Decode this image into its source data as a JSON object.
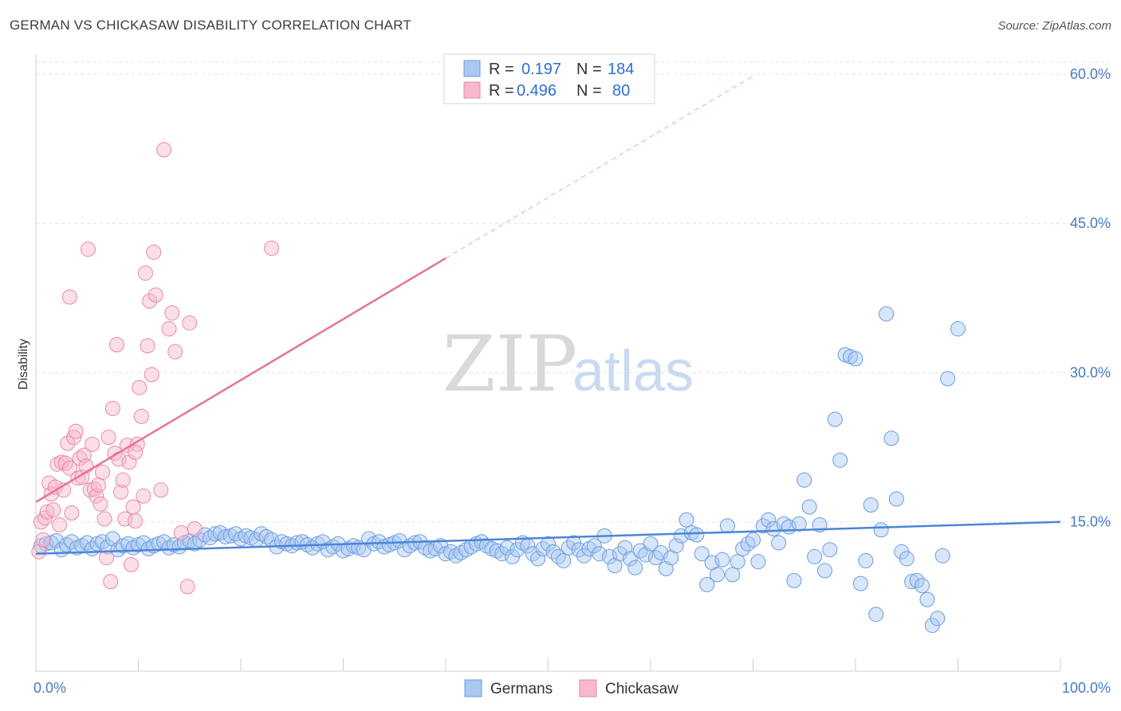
{
  "title": "GERMAN VS CHICKASAW DISABILITY CORRELATION CHART",
  "source": "Source: ZipAtlas.com",
  "watermark": {
    "zip": "ZIP",
    "atlas": "atlas"
  },
  "legend": {
    "r_label": "R =",
    "n_label": "N =",
    "rows": [
      {
        "r": "0.197",
        "n": "184",
        "color": "#a9c8f2"
      },
      {
        "r": "0.496",
        "n": "80",
        "color": "#f7b9cb"
      }
    ]
  },
  "bottom_legend": [
    {
      "label": "Germans",
      "color": "#a9c8f2"
    },
    {
      "label": "Chickasaw",
      "color": "#f7b9cb"
    }
  ],
  "chart_data": {
    "type": "scatter",
    "xlabel": "",
    "ylabel": "Disability",
    "xlim": [
      0,
      100
    ],
    "ylim": [
      0,
      62
    ],
    "x_tick_labels": [
      "0.0%",
      "100.0%"
    ],
    "y_ticks": [
      15,
      30,
      45,
      60
    ],
    "y_tick_labels": [
      "15.0%",
      "30.0%",
      "45.0%",
      "60.0%"
    ],
    "grid": true,
    "legend_position": "top-center",
    "colors": {
      "germans": "#4a86d8",
      "chickasaw": "#e8729a"
    },
    "series": [
      {
        "name": "Germans",
        "trend": {
          "x1": 0,
          "y1": 11.8,
          "x2": 100,
          "y2": 15.0
        },
        "points": [
          [
            0.5,
            12.6
          ],
          [
            1,
            12.8
          ],
          [
            1.5,
            12.9
          ],
          [
            2,
            13.1
          ],
          [
            2.5,
            12.2
          ],
          [
            3,
            12.7
          ],
          [
            3.5,
            13.0
          ],
          [
            4,
            12.4
          ],
          [
            4.5,
            12.6
          ],
          [
            5,
            12.9
          ],
          [
            5.5,
            12.3
          ],
          [
            6,
            12.8
          ],
          [
            6.5,
            13.0
          ],
          [
            7,
            12.5
          ],
          [
            7.5,
            13.3
          ],
          [
            8,
            12.2
          ],
          [
            8.5,
            12.6
          ],
          [
            9,
            12.8
          ],
          [
            9.5,
            12.4
          ],
          [
            10,
            12.7
          ],
          [
            10.5,
            12.9
          ],
          [
            11,
            12.3
          ],
          [
            11.5,
            12.6
          ],
          [
            12,
            12.8
          ],
          [
            12.5,
            13.0
          ],
          [
            13,
            12.4
          ],
          [
            13.5,
            12.7
          ],
          [
            14,
            12.5
          ],
          [
            14.5,
            12.9
          ],
          [
            15,
            13.1
          ],
          [
            15.5,
            12.8
          ],
          [
            16,
            13.2
          ],
          [
            16.5,
            13.7
          ],
          [
            17,
            13.4
          ],
          [
            17.5,
            13.8
          ],
          [
            18,
            13.9
          ],
          [
            18.5,
            13.5
          ],
          [
            19,
            13.6
          ],
          [
            19.5,
            13.8
          ],
          [
            20,
            13.3
          ],
          [
            20.5,
            13.6
          ],
          [
            21,
            13.4
          ],
          [
            21.5,
            13.2
          ],
          [
            22,
            13.8
          ],
          [
            22.5,
            13.5
          ],
          [
            23,
            13.2
          ],
          [
            23.5,
            12.5
          ],
          [
            24,
            13.0
          ],
          [
            24.5,
            12.8
          ],
          [
            25,
            12.6
          ],
          [
            25.5,
            12.9
          ],
          [
            26,
            13.0
          ],
          [
            26.5,
            12.7
          ],
          [
            27,
            12.4
          ],
          [
            27.5,
            12.8
          ],
          [
            28,
            13.0
          ],
          [
            28.5,
            12.2
          ],
          [
            29,
            12.5
          ],
          [
            29.5,
            12.8
          ],
          [
            30,
            12.1
          ],
          [
            30.5,
            12.3
          ],
          [
            31,
            12.6
          ],
          [
            31.5,
            12.4
          ],
          [
            32,
            12.2
          ],
          [
            32.5,
            13.3
          ],
          [
            33,
            12.8
          ],
          [
            33.5,
            13.0
          ],
          [
            34,
            12.5
          ],
          [
            34.5,
            12.7
          ],
          [
            35,
            12.9
          ],
          [
            35.5,
            13.1
          ],
          [
            36,
            12.2
          ],
          [
            36.5,
            12.6
          ],
          [
            37,
            12.9
          ],
          [
            37.5,
            13.0
          ],
          [
            38,
            12.4
          ],
          [
            38.5,
            12.1
          ],
          [
            39,
            12.3
          ],
          [
            39.5,
            12.6
          ],
          [
            40,
            11.8
          ],
          [
            40.5,
            12.0
          ],
          [
            41,
            11.6
          ],
          [
            41.5,
            11.9
          ],
          [
            42,
            12.2
          ],
          [
            42.5,
            12.5
          ],
          [
            43,
            12.8
          ],
          [
            43.5,
            13.0
          ],
          [
            44,
            12.6
          ],
          [
            44.5,
            12.3
          ],
          [
            45,
            12.1
          ],
          [
            45.5,
            11.8
          ],
          [
            46,
            12.4
          ],
          [
            46.5,
            11.5
          ],
          [
            47,
            12.2
          ],
          [
            47.5,
            12.9
          ],
          [
            48,
            12.6
          ],
          [
            48.5,
            11.8
          ],
          [
            49,
            11.3
          ],
          [
            49.5,
            12.3
          ],
          [
            50,
            12.8
          ],
          [
            50.5,
            12.0
          ],
          [
            51,
            11.5
          ],
          [
            51.5,
            11.1
          ],
          [
            52,
            12.4
          ],
          [
            52.5,
            12.9
          ],
          [
            53,
            12.2
          ],
          [
            53.5,
            11.6
          ],
          [
            54,
            12.3
          ],
          [
            54.5,
            12.6
          ],
          [
            55,
            11.8
          ],
          [
            55.5,
            13.6
          ],
          [
            56,
            11.5
          ],
          [
            56.5,
            10.6
          ],
          [
            57,
            11.8
          ],
          [
            57.5,
            12.4
          ],
          [
            58,
            11.3
          ],
          [
            58.5,
            10.4
          ],
          [
            59,
            12.1
          ],
          [
            59.5,
            11.7
          ],
          [
            60,
            12.8
          ],
          [
            60.5,
            11.4
          ],
          [
            61,
            11.9
          ],
          [
            61.5,
            10.3
          ],
          [
            62,
            11.4
          ],
          [
            62.5,
            12.6
          ],
          [
            63,
            13.6
          ],
          [
            63.5,
            15.2
          ],
          [
            64,
            13.9
          ],
          [
            64.5,
            13.7
          ],
          [
            65,
            11.8
          ],
          [
            65.5,
            8.7
          ],
          [
            66,
            10.9
          ],
          [
            66.5,
            9.7
          ],
          [
            67,
            11.2
          ],
          [
            67.5,
            14.6
          ],
          [
            68,
            9.7
          ],
          [
            68.5,
            11.0
          ],
          [
            69,
            12.3
          ],
          [
            69.5,
            12.8
          ],
          [
            70,
            13.2
          ],
          [
            70.5,
            11.0
          ],
          [
            71,
            14.6
          ],
          [
            71.5,
            15.2
          ],
          [
            72,
            14.3
          ],
          [
            72.5,
            12.9
          ],
          [
            73,
            14.8
          ],
          [
            73.5,
            14.5
          ],
          [
            74,
            9.1
          ],
          [
            74.5,
            14.8
          ],
          [
            75,
            19.2
          ],
          [
            75.5,
            16.5
          ],
          [
            76,
            11.5
          ],
          [
            76.5,
            14.7
          ],
          [
            77,
            10.1
          ],
          [
            77.5,
            12.2
          ],
          [
            78,
            25.3
          ],
          [
            78.5,
            21.2
          ],
          [
            79,
            31.8
          ],
          [
            79.5,
            31.6
          ],
          [
            80,
            31.4
          ],
          [
            80.5,
            8.8
          ],
          [
            81,
            11.1
          ],
          [
            81.5,
            16.7
          ],
          [
            82,
            5.7
          ],
          [
            82.5,
            14.2
          ],
          [
            83,
            35.9
          ],
          [
            83.5,
            23.4
          ],
          [
            84,
            17.3
          ],
          [
            84.5,
            12.0
          ],
          [
            85,
            11.3
          ],
          [
            85.5,
            9.0
          ],
          [
            86,
            9.1
          ],
          [
            86.5,
            8.6
          ],
          [
            87,
            7.2
          ],
          [
            87.5,
            4.6
          ],
          [
            88,
            5.3
          ],
          [
            88.5,
            11.6
          ],
          [
            89,
            29.4
          ],
          [
            90,
            34.4
          ]
        ]
      },
      {
        "name": "Chickasaw",
        "trend": {
          "x1": 0,
          "y1": 17.0,
          "x2": 40,
          "y2": 41.5,
          "dash_x2": 70,
          "dash_y2": 59.8
        },
        "points": [
          [
            0.3,
            12.0
          ],
          [
            0.5,
            15.0
          ],
          [
            0.7,
            13.2
          ],
          [
            0.9,
            15.4
          ],
          [
            1.1,
            16.0
          ],
          [
            1.3,
            18.9
          ],
          [
            1.5,
            17.8
          ],
          [
            1.7,
            16.2
          ],
          [
            1.9,
            18.5
          ],
          [
            2.1,
            20.8
          ],
          [
            2.3,
            14.7
          ],
          [
            2.5,
            21.0
          ],
          [
            2.7,
            18.2
          ],
          [
            2.9,
            20.9
          ],
          [
            3.1,
            22.9
          ],
          [
            3.3,
            20.4
          ],
          [
            3.5,
            15.9
          ],
          [
            3.7,
            23.5
          ],
          [
            3.9,
            24.1
          ],
          [
            4.1,
            19.4
          ],
          [
            4.3,
            21.4
          ],
          [
            4.5,
            19.5
          ],
          [
            4.7,
            21.7
          ],
          [
            4.9,
            20.6
          ],
          [
            5.1,
            42.4
          ],
          [
            5.3,
            18.2
          ],
          [
            5.5,
            22.8
          ],
          [
            5.7,
            18.3
          ],
          [
            5.9,
            17.6
          ],
          [
            6.1,
            18.7
          ],
          [
            6.3,
            16.8
          ],
          [
            6.5,
            20.0
          ],
          [
            6.7,
            15.3
          ],
          [
            6.9,
            11.4
          ],
          [
            7.1,
            23.5
          ],
          [
            7.3,
            9.0
          ],
          [
            7.5,
            26.4
          ],
          [
            7.7,
            21.9
          ],
          [
            7.9,
            32.8
          ],
          [
            8.1,
            21.3
          ],
          [
            8.3,
            18.0
          ],
          [
            8.5,
            19.2
          ],
          [
            8.7,
            15.3
          ],
          [
            8.9,
            22.7
          ],
          [
            9.1,
            21.0
          ],
          [
            9.3,
            10.7
          ],
          [
            9.5,
            16.5
          ],
          [
            9.7,
            15.1
          ],
          [
            9.9,
            22.8
          ],
          [
            10.1,
            28.5
          ],
          [
            10.3,
            25.6
          ],
          [
            10.5,
            17.6
          ],
          [
            10.7,
            40.0
          ],
          [
            10.9,
            32.7
          ],
          [
            11.1,
            37.2
          ],
          [
            11.3,
            29.8
          ],
          [
            11.5,
            42.1
          ],
          [
            11.7,
            37.8
          ],
          [
            12.2,
            18.2
          ],
          [
            12.5,
            52.4
          ],
          [
            13,
            34.4
          ],
          [
            13.3,
            36.0
          ],
          [
            13.6,
            32.1
          ],
          [
            14.2,
            13.9
          ],
          [
            14.8,
            8.5
          ],
          [
            15,
            35.0
          ],
          [
            15.5,
            14.3
          ],
          [
            23,
            42.5
          ],
          [
            3.3,
            37.6
          ],
          [
            9.7,
            22.0
          ]
        ]
      }
    ]
  }
}
